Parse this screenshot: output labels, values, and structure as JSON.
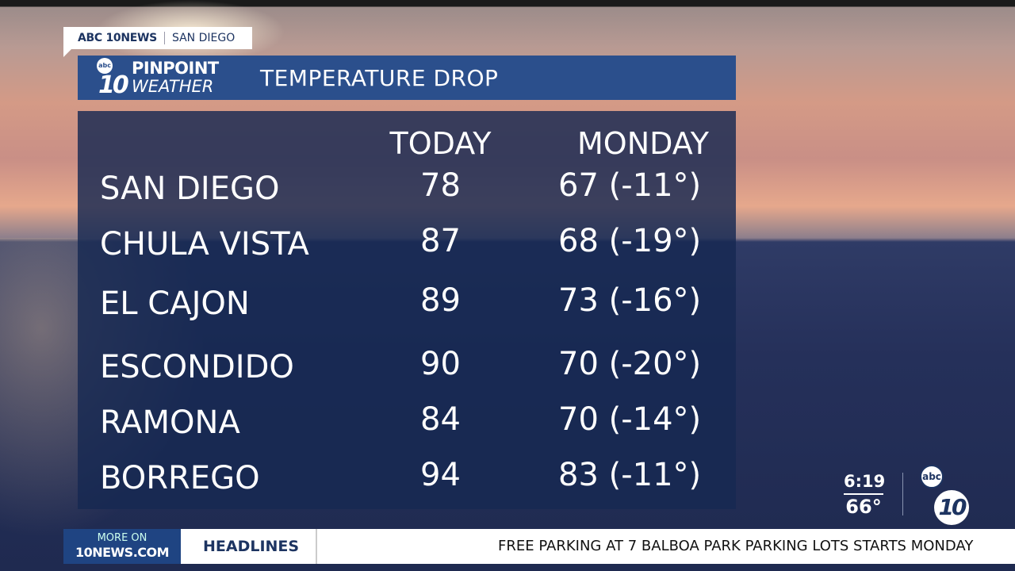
{
  "source": {
    "brand": "ABC 10NEWS",
    "location": "SAN DIEGO"
  },
  "header": {
    "logo_abc": "abc",
    "logo_ten": "10",
    "logo_line1": "PINPOINT",
    "logo_line2": "WEATHER",
    "title": "TEMPERATURE DROP"
  },
  "table": {
    "columns": [
      "TODAY",
      "MONDAY"
    ],
    "rows": [
      {
        "city": "SAN DIEGO",
        "today": "78",
        "monday": "67 (-11°)"
      },
      {
        "city": "CHULA VISTA",
        "today": "87",
        "monday": "68 (-19°)"
      },
      {
        "city": "EL CAJON",
        "today": "89",
        "monday": "73 (-16°)"
      },
      {
        "city": "ESCONDIDO",
        "today": "90",
        "monday": "70 (-20°)"
      },
      {
        "city": "RAMONA",
        "today": "84",
        "monday": "70 (-14°)"
      },
      {
        "city": "BORREGO",
        "today": "94",
        "monday": "83 (-11°)"
      }
    ]
  },
  "status": {
    "time": "6:19",
    "temp": "66°",
    "bug_abc": "abc",
    "bug_ten": "10"
  },
  "ticker": {
    "more_line1": "MORE ON",
    "more_line2": "10NEWS.COM",
    "section": "HEADLINES",
    "crawl": "FREE PARKING AT 7 BALBOA PARK PARKING LOTS STARTS MONDAY"
  },
  "colors": {
    "header_blue": "#2b4f8c",
    "panel_navy": "#162852",
    "brand_navy": "#1d3461"
  }
}
